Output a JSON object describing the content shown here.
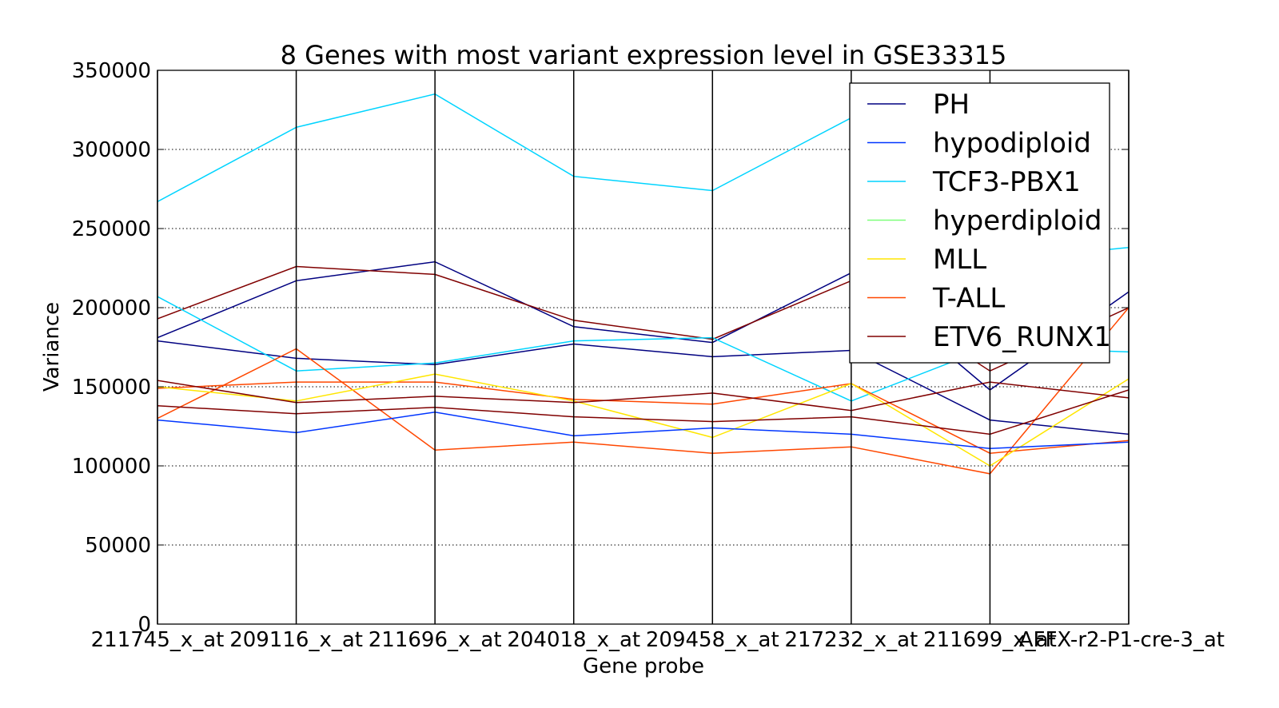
{
  "chart_data": {
    "type": "line",
    "subtype": "parallel-coordinates",
    "title": "8 Genes with most variant expression level in GSE33315",
    "xlabel": "Gene probe",
    "ylabel": "Variance",
    "ylim": [
      0,
      350000
    ],
    "yticks": [
      "0",
      "50000",
      "100000",
      "150000",
      "200000",
      "250000",
      "300000",
      "350000"
    ],
    "yticks_values": [
      0,
      50000,
      100000,
      150000,
      200000,
      250000,
      300000,
      350000
    ],
    "categories": [
      "211745_x_at",
      "209116_x_at",
      "211696_x_at",
      "204018_x_at",
      "209458_x_at",
      "217232_x_at",
      "211699_x_at",
      "AFFX-r2-P1-cre-3_at"
    ],
    "grid": "horizontal dotted",
    "legend_position": "top-right",
    "legend": [
      {
        "name": "PH",
        "color": "#000080"
      },
      {
        "name": "hypodiploid",
        "color": "#0035ff"
      },
      {
        "name": "TCF3-PBX1",
        "color": "#00d4ff"
      },
      {
        "name": "hyperdiploid",
        "color": "#7dff7a"
      },
      {
        "name": "MLL",
        "color": "#ffe600"
      },
      {
        "name": "T-ALL",
        "color": "#ff4700"
      },
      {
        "name": "ETV6_RUNX1",
        "color": "#800000"
      }
    ],
    "series": [
      {
        "name": "TCF3-PBX1",
        "values": [
          267000,
          314000,
          335000,
          283000,
          274000,
          320000,
          230000,
          238000
        ]
      },
      {
        "name": "PH",
        "values": [
          181000,
          217000,
          229000,
          188000,
          178000,
          222000,
          148000,
          210000
        ]
      },
      {
        "name": "ETV6_RUNX1",
        "values": [
          193000,
          226000,
          221000,
          192000,
          180000,
          217000,
          160000,
          200000
        ]
      },
      {
        "name": "PH",
        "values": [
          179000,
          168000,
          164000,
          177000,
          169000,
          173000,
          129000,
          120000
        ]
      },
      {
        "name": "TCF3-PBX1",
        "values": [
          207000,
          160000,
          165000,
          179000,
          181000,
          141000,
          175000,
          172000
        ]
      },
      {
        "name": "T-ALL",
        "values": [
          130000,
          174000,
          110000,
          115000,
          108000,
          112000,
          95000,
          200000
        ]
      },
      {
        "name": "T-ALL",
        "values": [
          149000,
          153000,
          153000,
          142000,
          139000,
          152000,
          108000,
          116000
        ]
      },
      {
        "name": "MLL",
        "values": [
          150000,
          141000,
          158000,
          141000,
          118000,
          152000,
          100000,
          155000
        ]
      },
      {
        "name": "ETV6_RUNX1",
        "values": [
          154000,
          140000,
          144000,
          140000,
          146000,
          135000,
          153000,
          143000
        ]
      },
      {
        "name": "ETV6_RUNX1",
        "values": [
          138000,
          133000,
          137000,
          131000,
          128000,
          131000,
          120000,
          148000
        ]
      },
      {
        "name": "hypodiploid",
        "values": [
          129000,
          121000,
          134000,
          119000,
          124000,
          120000,
          111000,
          115000
        ]
      }
    ]
  }
}
